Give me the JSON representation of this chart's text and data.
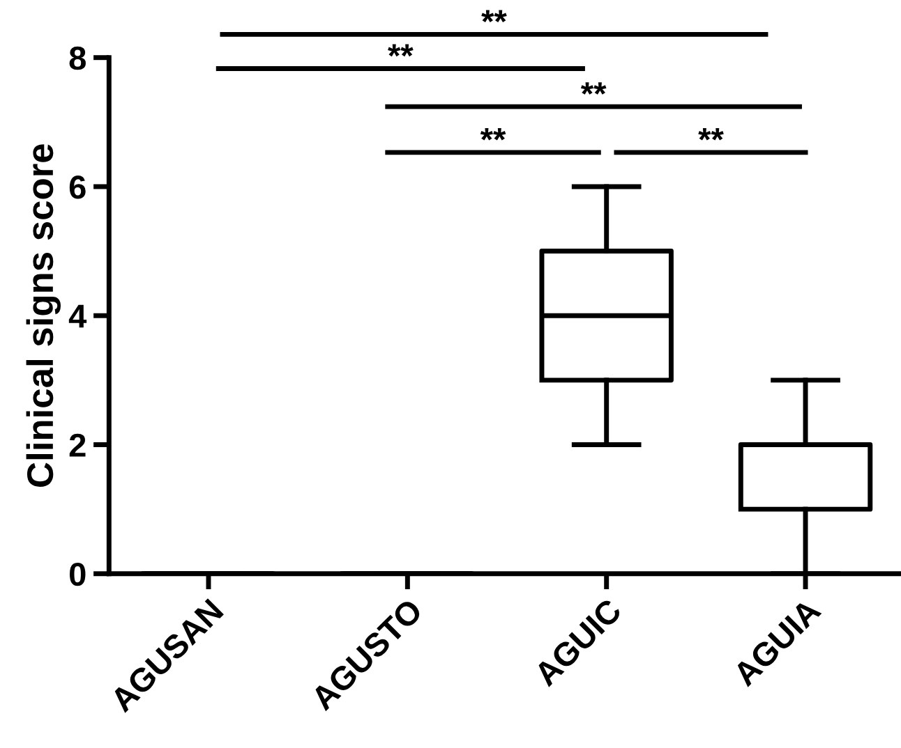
{
  "chart_data": {
    "type": "box",
    "ylabel": "Clinical signs score",
    "categories": [
      "AGUSAN",
      "AGUSTO",
      "AGUIC",
      "AGUIA"
    ],
    "boxes": [
      {
        "low": 0,
        "q1": 0,
        "median": 0,
        "q3": 0,
        "high": 0
      },
      {
        "low": 0,
        "q1": 0,
        "median": 0,
        "q3": 0,
        "high": 0
      },
      {
        "low": 2,
        "q1": 3,
        "median": 4,
        "q3": 5,
        "high": 6
      },
      {
        "low": 0,
        "q1": 1,
        "median": 2,
        "q3": 2,
        "high": 3
      }
    ],
    "color": "#000000",
    "ylim": [
      0,
      8
    ],
    "yticks": [
      0,
      2,
      4,
      6,
      8
    ],
    "grid": false,
    "annotations": [
      "**",
      "**",
      "**",
      "**",
      "**"
    ]
  }
}
